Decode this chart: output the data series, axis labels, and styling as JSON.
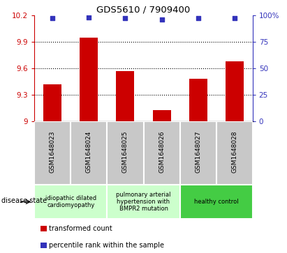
{
  "title": "GDS5610 / 7909400",
  "samples": [
    "GSM1648023",
    "GSM1648024",
    "GSM1648025",
    "GSM1648026",
    "GSM1648027",
    "GSM1648028"
  ],
  "transformed_counts": [
    9.42,
    9.95,
    9.57,
    9.13,
    9.48,
    9.68
  ],
  "percentile_ranks": [
    97,
    98,
    97,
    96,
    97,
    97
  ],
  "ylim_left": [
    9.0,
    10.2
  ],
  "ylim_right": [
    0,
    100
  ],
  "yticks_left": [
    9.0,
    9.3,
    9.6,
    9.9,
    10.2
  ],
  "yticks_right": [
    0,
    25,
    50,
    75,
    100
  ],
  "ytick_labels_left": [
    "9",
    "9.3",
    "9.6",
    "9.9",
    "10.2"
  ],
  "ytick_labels_right": [
    "0",
    "25",
    "50",
    "75",
    "100%"
  ],
  "grid_lines": [
    9.3,
    9.6,
    9.9
  ],
  "bar_color": "#cc0000",
  "dot_color": "#3333bb",
  "bar_width": 0.5,
  "disease_state_label": "disease state",
  "legend_bar_label": "transformed count",
  "legend_dot_label": "percentile rank within the sample",
  "tick_label_color_left": "#cc0000",
  "tick_label_color_right": "#3333bb",
  "bg_color_samples": "#c8c8c8",
  "bg_color_group1": "#ccffcc",
  "bg_color_group2": "#ccffcc",
  "bg_color_group3": "#44cc44",
  "group_defs": [
    {
      "indices": [
        0,
        1
      ],
      "label": "idiopathic dilated\ncardiomyopathy",
      "color": "#ccffcc"
    },
    {
      "indices": [
        2,
        3
      ],
      "label": "pulmonary arterial\nhypertension with\nBMPR2 mutation",
      "color": "#ccffcc"
    },
    {
      "indices": [
        4,
        5
      ],
      "label": "healthy control",
      "color": "#44cc44"
    }
  ]
}
